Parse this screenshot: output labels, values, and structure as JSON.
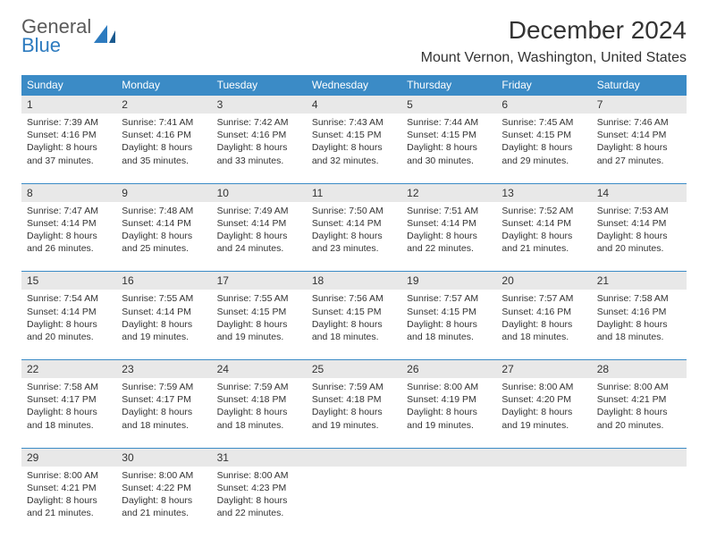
{
  "logo": {
    "top": "General",
    "bottom": "Blue"
  },
  "title": "December 2024",
  "location": "Mount Vernon, Washington, United States",
  "weekday_bg": "#3b8bc6",
  "weekday_fg": "#ffffff",
  "daynum_bg": "#e8e8e8",
  "border_color": "#3b8bc6",
  "weekdays": [
    "Sunday",
    "Monday",
    "Tuesday",
    "Wednesday",
    "Thursday",
    "Friday",
    "Saturday"
  ],
  "weeks": [
    [
      {
        "num": "1",
        "sunrise": "Sunrise: 7:39 AM",
        "sunset": "Sunset: 4:16 PM",
        "daylight": "Daylight: 8 hours and 37 minutes."
      },
      {
        "num": "2",
        "sunrise": "Sunrise: 7:41 AM",
        "sunset": "Sunset: 4:16 PM",
        "daylight": "Daylight: 8 hours and 35 minutes."
      },
      {
        "num": "3",
        "sunrise": "Sunrise: 7:42 AM",
        "sunset": "Sunset: 4:16 PM",
        "daylight": "Daylight: 8 hours and 33 minutes."
      },
      {
        "num": "4",
        "sunrise": "Sunrise: 7:43 AM",
        "sunset": "Sunset: 4:15 PM",
        "daylight": "Daylight: 8 hours and 32 minutes."
      },
      {
        "num": "5",
        "sunrise": "Sunrise: 7:44 AM",
        "sunset": "Sunset: 4:15 PM",
        "daylight": "Daylight: 8 hours and 30 minutes."
      },
      {
        "num": "6",
        "sunrise": "Sunrise: 7:45 AM",
        "sunset": "Sunset: 4:15 PM",
        "daylight": "Daylight: 8 hours and 29 minutes."
      },
      {
        "num": "7",
        "sunrise": "Sunrise: 7:46 AM",
        "sunset": "Sunset: 4:14 PM",
        "daylight": "Daylight: 8 hours and 27 minutes."
      }
    ],
    [
      {
        "num": "8",
        "sunrise": "Sunrise: 7:47 AM",
        "sunset": "Sunset: 4:14 PM",
        "daylight": "Daylight: 8 hours and 26 minutes."
      },
      {
        "num": "9",
        "sunrise": "Sunrise: 7:48 AM",
        "sunset": "Sunset: 4:14 PM",
        "daylight": "Daylight: 8 hours and 25 minutes."
      },
      {
        "num": "10",
        "sunrise": "Sunrise: 7:49 AM",
        "sunset": "Sunset: 4:14 PM",
        "daylight": "Daylight: 8 hours and 24 minutes."
      },
      {
        "num": "11",
        "sunrise": "Sunrise: 7:50 AM",
        "sunset": "Sunset: 4:14 PM",
        "daylight": "Daylight: 8 hours and 23 minutes."
      },
      {
        "num": "12",
        "sunrise": "Sunrise: 7:51 AM",
        "sunset": "Sunset: 4:14 PM",
        "daylight": "Daylight: 8 hours and 22 minutes."
      },
      {
        "num": "13",
        "sunrise": "Sunrise: 7:52 AM",
        "sunset": "Sunset: 4:14 PM",
        "daylight": "Daylight: 8 hours and 21 minutes."
      },
      {
        "num": "14",
        "sunrise": "Sunrise: 7:53 AM",
        "sunset": "Sunset: 4:14 PM",
        "daylight": "Daylight: 8 hours and 20 minutes."
      }
    ],
    [
      {
        "num": "15",
        "sunrise": "Sunrise: 7:54 AM",
        "sunset": "Sunset: 4:14 PM",
        "daylight": "Daylight: 8 hours and 20 minutes."
      },
      {
        "num": "16",
        "sunrise": "Sunrise: 7:55 AM",
        "sunset": "Sunset: 4:14 PM",
        "daylight": "Daylight: 8 hours and 19 minutes."
      },
      {
        "num": "17",
        "sunrise": "Sunrise: 7:55 AM",
        "sunset": "Sunset: 4:15 PM",
        "daylight": "Daylight: 8 hours and 19 minutes."
      },
      {
        "num": "18",
        "sunrise": "Sunrise: 7:56 AM",
        "sunset": "Sunset: 4:15 PM",
        "daylight": "Daylight: 8 hours and 18 minutes."
      },
      {
        "num": "19",
        "sunrise": "Sunrise: 7:57 AM",
        "sunset": "Sunset: 4:15 PM",
        "daylight": "Daylight: 8 hours and 18 minutes."
      },
      {
        "num": "20",
        "sunrise": "Sunrise: 7:57 AM",
        "sunset": "Sunset: 4:16 PM",
        "daylight": "Daylight: 8 hours and 18 minutes."
      },
      {
        "num": "21",
        "sunrise": "Sunrise: 7:58 AM",
        "sunset": "Sunset: 4:16 PM",
        "daylight": "Daylight: 8 hours and 18 minutes."
      }
    ],
    [
      {
        "num": "22",
        "sunrise": "Sunrise: 7:58 AM",
        "sunset": "Sunset: 4:17 PM",
        "daylight": "Daylight: 8 hours and 18 minutes."
      },
      {
        "num": "23",
        "sunrise": "Sunrise: 7:59 AM",
        "sunset": "Sunset: 4:17 PM",
        "daylight": "Daylight: 8 hours and 18 minutes."
      },
      {
        "num": "24",
        "sunrise": "Sunrise: 7:59 AM",
        "sunset": "Sunset: 4:18 PM",
        "daylight": "Daylight: 8 hours and 18 minutes."
      },
      {
        "num": "25",
        "sunrise": "Sunrise: 7:59 AM",
        "sunset": "Sunset: 4:18 PM",
        "daylight": "Daylight: 8 hours and 19 minutes."
      },
      {
        "num": "26",
        "sunrise": "Sunrise: 8:00 AM",
        "sunset": "Sunset: 4:19 PM",
        "daylight": "Daylight: 8 hours and 19 minutes."
      },
      {
        "num": "27",
        "sunrise": "Sunrise: 8:00 AM",
        "sunset": "Sunset: 4:20 PM",
        "daylight": "Daylight: 8 hours and 19 minutes."
      },
      {
        "num": "28",
        "sunrise": "Sunrise: 8:00 AM",
        "sunset": "Sunset: 4:21 PM",
        "daylight": "Daylight: 8 hours and 20 minutes."
      }
    ],
    [
      {
        "num": "29",
        "sunrise": "Sunrise: 8:00 AM",
        "sunset": "Sunset: 4:21 PM",
        "daylight": "Daylight: 8 hours and 21 minutes."
      },
      {
        "num": "30",
        "sunrise": "Sunrise: 8:00 AM",
        "sunset": "Sunset: 4:22 PM",
        "daylight": "Daylight: 8 hours and 21 minutes."
      },
      {
        "num": "31",
        "sunrise": "Sunrise: 8:00 AM",
        "sunset": "Sunset: 4:23 PM",
        "daylight": "Daylight: 8 hours and 22 minutes."
      },
      null,
      null,
      null,
      null
    ]
  ]
}
